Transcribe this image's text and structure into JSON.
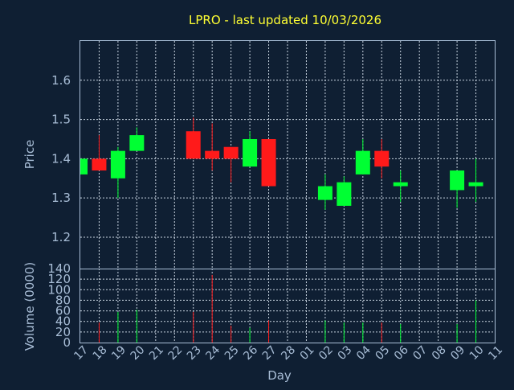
{
  "title": "LPRO - last updated 10/03/2026",
  "colors": {
    "background": "#0f1f33",
    "up": "#00ff33",
    "down": "#ff1a1a",
    "title": "#ffff33",
    "text": "#a8bdd6"
  },
  "chart_data": [
    {
      "type": "candlestick",
      "ylabel": "Price",
      "ylim": [
        1.12,
        1.7
      ],
      "yticks": [
        "1.2",
        "1.3",
        "1.4",
        "1.5",
        "1.6"
      ],
      "grid": true,
      "candles": [
        {
          "day": "17",
          "open": 1.36,
          "high": 1.4,
          "low": 1.36,
          "close": 1.4
        },
        {
          "day": "18",
          "open": 1.4,
          "high": 1.46,
          "low": 1.37,
          "close": 1.37
        },
        {
          "day": "19",
          "open": 1.35,
          "high": 1.43,
          "low": 1.3,
          "close": 1.42
        },
        {
          "day": "20",
          "open": 1.42,
          "high": 1.48,
          "low": 1.42,
          "close": 1.46
        },
        {
          "day": "23",
          "open": 1.47,
          "high": 1.505,
          "low": 1.4,
          "close": 1.4
        },
        {
          "day": "24",
          "open": 1.42,
          "high": 1.49,
          "low": 1.37,
          "close": 1.4
        },
        {
          "day": "25",
          "open": 1.43,
          "high": 1.43,
          "low": 1.34,
          "close": 1.4
        },
        {
          "day": "26",
          "open": 1.38,
          "high": 1.47,
          "low": 1.38,
          "close": 1.45
        },
        {
          "day": "27",
          "open": 1.45,
          "high": 1.45,
          "low": 1.33,
          "close": 1.33
        },
        {
          "day": "02",
          "open": 1.295,
          "high": 1.36,
          "low": 1.27,
          "close": 1.33
        },
        {
          "day": "03",
          "open": 1.28,
          "high": 1.355,
          "low": 1.28,
          "close": 1.34
        },
        {
          "day": "04",
          "open": 1.36,
          "high": 1.45,
          "low": 1.36,
          "close": 1.42
        },
        {
          "day": "05",
          "open": 1.42,
          "high": 1.45,
          "low": 1.35,
          "close": 1.38
        },
        {
          "day": "06",
          "open": 1.33,
          "high": 1.37,
          "low": 1.29,
          "close": 1.34
        },
        {
          "day": "09",
          "open": 1.32,
          "high": 1.37,
          "low": 1.275,
          "close": 1.37
        },
        {
          "day": "10",
          "open": 1.33,
          "high": 1.4,
          "low": 1.29,
          "close": 1.34
        }
      ]
    },
    {
      "type": "bar",
      "ylabel": "Volume (0000)",
      "xlabel": "Day",
      "ylim": [
        0,
        140
      ],
      "yticks": [
        "0",
        "20",
        "40",
        "60",
        "80",
        "100",
        "120",
        "140"
      ],
      "xticks": [
        "17",
        "18",
        "19",
        "20",
        "21",
        "22",
        "23",
        "24",
        "25",
        "26",
        "27",
        "28",
        "01",
        "02",
        "03",
        "04",
        "05",
        "06",
        "07",
        "08",
        "09",
        "10",
        "11"
      ],
      "volumes": [
        {
          "day": "18",
          "value": 38,
          "dir": "down"
        },
        {
          "day": "19",
          "value": 58,
          "dir": "up"
        },
        {
          "day": "20",
          "value": 62,
          "dir": "up"
        },
        {
          "day": "23",
          "value": 58,
          "dir": "down"
        },
        {
          "day": "24",
          "value": 128,
          "dir": "down"
        },
        {
          "day": "25",
          "value": 32,
          "dir": "down"
        },
        {
          "day": "26",
          "value": 28,
          "dir": "up"
        },
        {
          "day": "27",
          "value": 42,
          "dir": "down"
        },
        {
          "day": "02",
          "value": 42,
          "dir": "up"
        },
        {
          "day": "03",
          "value": 38,
          "dir": "up"
        },
        {
          "day": "04",
          "value": 38,
          "dir": "up"
        },
        {
          "day": "05",
          "value": 38,
          "dir": "down"
        },
        {
          "day": "06",
          "value": 35,
          "dir": "up"
        },
        {
          "day": "09",
          "value": 35,
          "dir": "up"
        },
        {
          "day": "10",
          "value": 80,
          "dir": "up"
        }
      ]
    }
  ]
}
